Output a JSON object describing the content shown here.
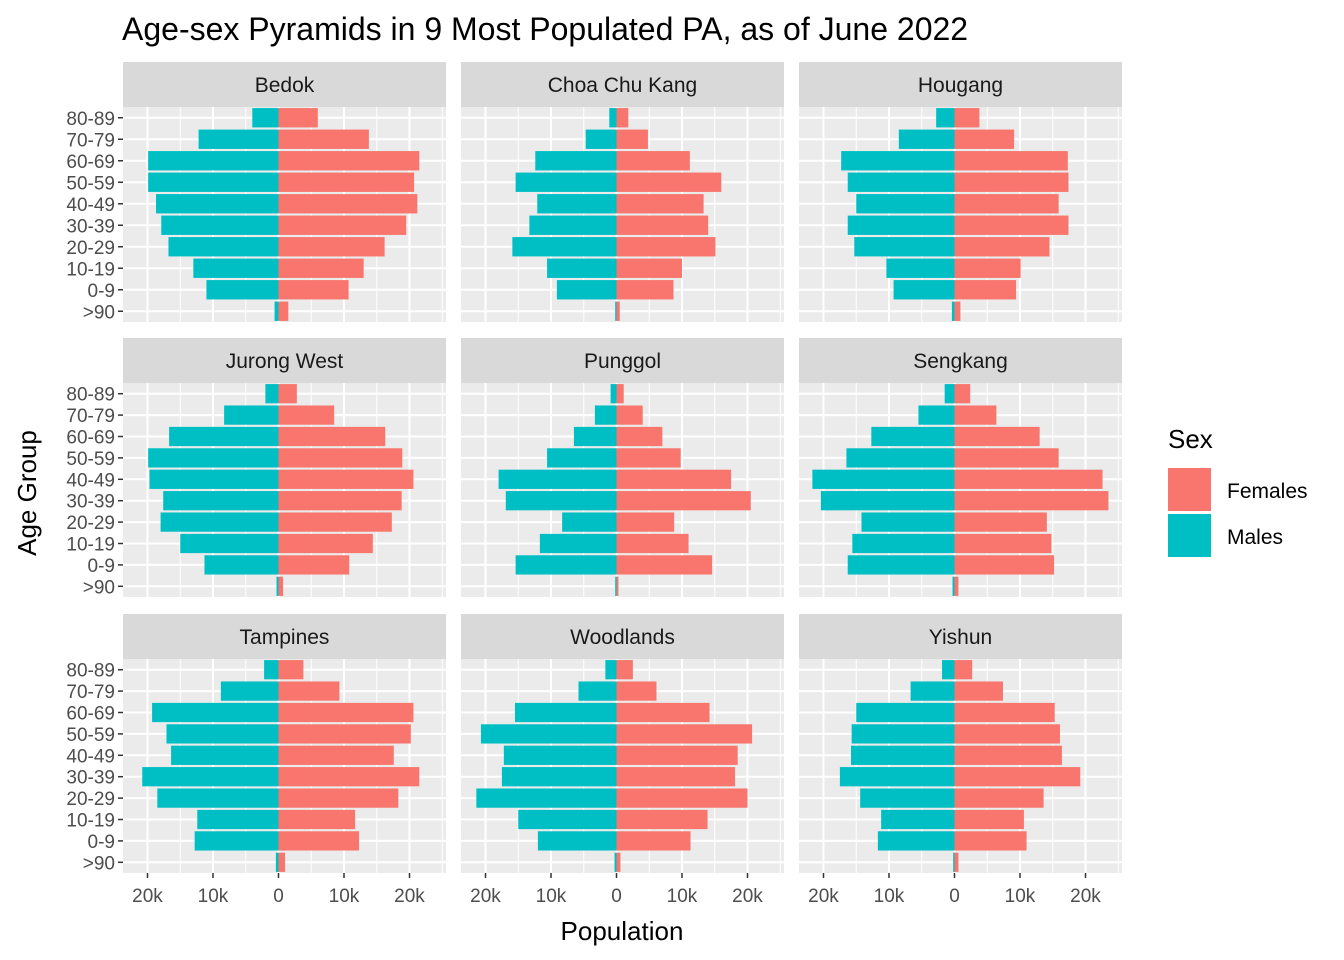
{
  "chart_data": {
    "type": "bar",
    "subtype": "population-pyramid",
    "title": "Age-sex Pyramids in 9 Most Populated PA, as of June 2022",
    "xlabel": "Population",
    "ylabel": "Age Group",
    "xlim": [
      -24000,
      24000
    ],
    "x_ticks": [
      -20000,
      -10000,
      0,
      10000,
      20000
    ],
    "x_tick_labels": [
      "20k",
      "10k",
      "0",
      "10k",
      "20k"
    ],
    "age_groups": [
      "80-89",
      "70-79",
      "60-69",
      "50-59",
      "40-49",
      "30-39",
      "20-29",
      "10-19",
      "0-9",
      ">90"
    ],
    "legend": {
      "title": "Sex",
      "position": "right",
      "items": [
        {
          "name": "Females",
          "color": "#F8766D"
        },
        {
          "name": "Males",
          "color": "#00BFC4"
        }
      ]
    },
    "panels": [
      {
        "name": "Bedok",
        "females": [
          6000,
          13800,
          21500,
          20700,
          21200,
          19500,
          16200,
          13000,
          10700,
          1500
        ],
        "males": [
          4000,
          12200,
          19900,
          19900,
          18700,
          17900,
          16800,
          13000,
          11000,
          600
        ]
      },
      {
        "name": "Choa Chu Kang",
        "females": [
          1800,
          4800,
          11200,
          16000,
          13300,
          14000,
          15100,
          10000,
          8700,
          500
        ],
        "males": [
          1100,
          4700,
          12400,
          15400,
          12100,
          13300,
          15900,
          10600,
          9100,
          200
        ]
      },
      {
        "name": "Hougang",
        "females": [
          3800,
          9100,
          17300,
          17400,
          15900,
          17400,
          14500,
          10100,
          9400,
          900
        ],
        "males": [
          2800,
          8500,
          17300,
          16300,
          15000,
          16300,
          15300,
          10400,
          9300,
          400
        ]
      },
      {
        "name": "Jurong West",
        "females": [
          2800,
          8500,
          16300,
          18900,
          20600,
          18800,
          17300,
          14400,
          10800,
          700
        ],
        "males": [
          2000,
          8300,
          16700,
          19900,
          19700,
          17600,
          18000,
          15000,
          11300,
          300
        ]
      },
      {
        "name": "Punggol",
        "females": [
          1100,
          4000,
          7000,
          9800,
          17500,
          20500,
          8800,
          11000,
          14600,
          300
        ],
        "males": [
          900,
          3300,
          6500,
          10600,
          18000,
          16900,
          8300,
          11700,
          15400,
          200
        ]
      },
      {
        "name": "Sengkang",
        "females": [
          2400,
          6400,
          13000,
          15900,
          22600,
          23500,
          14100,
          14800,
          15200,
          600
        ],
        "males": [
          1500,
          5500,
          12700,
          16500,
          21700,
          20400,
          14200,
          15600,
          16300,
          300
        ]
      },
      {
        "name": "Tampines",
        "females": [
          3800,
          9300,
          20600,
          20200,
          17600,
          21500,
          18300,
          11700,
          12300,
          1000
        ],
        "males": [
          2200,
          8800,
          19300,
          17100,
          16400,
          20800,
          18500,
          12400,
          12800,
          400
        ]
      },
      {
        "name": "Woodlands",
        "females": [
          2500,
          6100,
          14200,
          20700,
          18500,
          18100,
          20000,
          13900,
          11300,
          600
        ],
        "males": [
          1700,
          5800,
          15500,
          20700,
          17200,
          17500,
          21400,
          15000,
          12000,
          300
        ]
      },
      {
        "name": "Yishun",
        "females": [
          2700,
          7400,
          15300,
          16100,
          16400,
          19200,
          13600,
          10600,
          11000,
          600
        ],
        "males": [
          1900,
          6700,
          15000,
          15700,
          15800,
          17500,
          14400,
          11200,
          11700,
          200
        ]
      }
    ]
  }
}
